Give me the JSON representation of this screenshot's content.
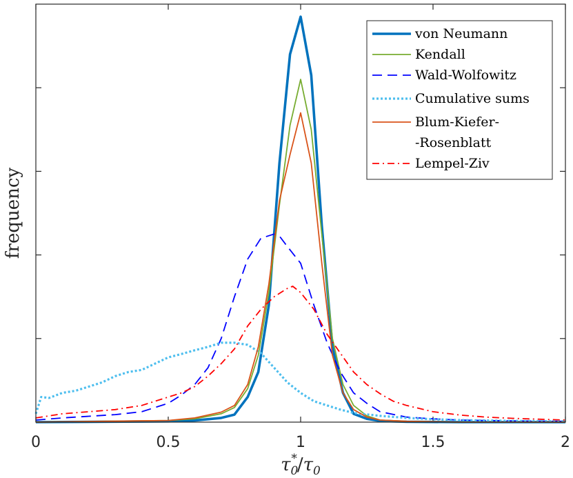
{
  "chart_data": {
    "type": "line",
    "xlabel": "τ0*/τ0",
    "ylabel": "frequency",
    "xlim": [
      0,
      2
    ],
    "ylim": [
      0,
      1
    ],
    "xticks": [
      0,
      0.5,
      1,
      1.5,
      2
    ],
    "xtick_labels": [
      "0",
      "0.5",
      "1",
      "1.5",
      "2"
    ],
    "yticks": [
      0.2,
      0.4,
      0.6,
      0.8
    ],
    "legend_position": "top-right",
    "series": [
      {
        "name": "von Neumann",
        "color": "#0072BD",
        "style": "solid-thick",
        "x": [
          0,
          0.5,
          0.6,
          0.7,
          0.75,
          0.8,
          0.84,
          0.88,
          0.92,
          0.96,
          1.0,
          1.04,
          1.08,
          1.12,
          1.16,
          1.2,
          1.25,
          1.3,
          1.4,
          1.6,
          2.0
        ],
        "y": [
          0.0,
          0.002,
          0.004,
          0.01,
          0.018,
          0.06,
          0.12,
          0.28,
          0.62,
          0.88,
          0.97,
          0.83,
          0.47,
          0.18,
          0.07,
          0.02,
          0.008,
          0.003,
          0.001,
          0.0,
          0.0
        ]
      },
      {
        "name": "Kendall",
        "color": "#77AC30",
        "style": "solid",
        "x": [
          0,
          0.5,
          0.6,
          0.7,
          0.75,
          0.8,
          0.84,
          0.88,
          0.92,
          0.96,
          1.0,
          1.04,
          1.08,
          1.12,
          1.16,
          1.2,
          1.25,
          1.3,
          1.4,
          1.6,
          2.0
        ],
        "y": [
          0.0,
          0.004,
          0.008,
          0.02,
          0.035,
          0.08,
          0.16,
          0.31,
          0.52,
          0.71,
          0.82,
          0.7,
          0.45,
          0.2,
          0.09,
          0.04,
          0.015,
          0.005,
          0.002,
          0.0,
          0.0
        ]
      },
      {
        "name": "Wald-Wolfowitz",
        "color": "#0000FF",
        "style": "dashed",
        "x": [
          0,
          0.1,
          0.2,
          0.3,
          0.4,
          0.5,
          0.55,
          0.6,
          0.65,
          0.7,
          0.75,
          0.8,
          0.85,
          0.9,
          0.92,
          0.95,
          1.0,
          1.05,
          1.1,
          1.15,
          1.2,
          1.25,
          1.3,
          1.4,
          1.5,
          1.6,
          1.8,
          2.0
        ],
        "y": [
          0.005,
          0.01,
          0.014,
          0.018,
          0.025,
          0.045,
          0.065,
          0.09,
          0.13,
          0.2,
          0.3,
          0.39,
          0.44,
          0.45,
          0.445,
          0.42,
          0.38,
          0.28,
          0.19,
          0.12,
          0.07,
          0.045,
          0.025,
          0.012,
          0.008,
          0.005,
          0.003,
          0.002
        ]
      },
      {
        "name": "Cumulative sums",
        "color": "#4DBEEE",
        "style": "dotted",
        "x": [
          0,
          0.02,
          0.05,
          0.1,
          0.15,
          0.2,
          0.25,
          0.3,
          0.35,
          0.4,
          0.45,
          0.5,
          0.55,
          0.6,
          0.65,
          0.7,
          0.72,
          0.75,
          0.8,
          0.85,
          0.9,
          0.95,
          1.0,
          1.05,
          1.1,
          1.15,
          1.2,
          1.3,
          1.4,
          1.5,
          1.6,
          1.8,
          2.0
        ],
        "y": [
          0.02,
          0.06,
          0.058,
          0.07,
          0.075,
          0.085,
          0.095,
          0.11,
          0.12,
          0.125,
          0.14,
          0.155,
          0.163,
          0.172,
          0.18,
          0.19,
          0.19,
          0.19,
          0.185,
          0.165,
          0.13,
          0.095,
          0.07,
          0.05,
          0.04,
          0.03,
          0.022,
          0.015,
          0.01,
          0.007,
          0.005,
          0.003,
          0.002
        ]
      },
      {
        "name": "Blum-Kiefer-\n-Rosenblatt",
        "color": "#D95319",
        "style": "solid",
        "x": [
          0,
          0.5,
          0.6,
          0.7,
          0.75,
          0.8,
          0.84,
          0.88,
          0.92,
          0.96,
          1.0,
          1.04,
          1.08,
          1.12,
          1.16,
          1.2,
          1.25,
          1.3,
          1.4,
          1.6,
          2.0
        ],
        "y": [
          0.0,
          0.004,
          0.01,
          0.024,
          0.04,
          0.09,
          0.18,
          0.33,
          0.53,
          0.64,
          0.74,
          0.62,
          0.38,
          0.16,
          0.07,
          0.03,
          0.012,
          0.005,
          0.002,
          0.0,
          0.0
        ]
      },
      {
        "name": "Lempel-Ziv",
        "color": "#FF0000",
        "style": "dash-dot",
        "x": [
          0,
          0.1,
          0.2,
          0.3,
          0.4,
          0.5,
          0.55,
          0.6,
          0.65,
          0.7,
          0.75,
          0.8,
          0.85,
          0.9,
          0.95,
          0.97,
          1.0,
          1.05,
          1.1,
          1.15,
          1.2,
          1.25,
          1.3,
          1.35,
          1.4,
          1.5,
          1.6,
          1.7,
          1.8,
          2.0
        ],
        "y": [
          0.01,
          0.02,
          0.025,
          0.03,
          0.04,
          0.06,
          0.07,
          0.085,
          0.11,
          0.14,
          0.175,
          0.23,
          0.27,
          0.3,
          0.32,
          0.325,
          0.31,
          0.27,
          0.21,
          0.165,
          0.12,
          0.09,
          0.068,
          0.05,
          0.04,
          0.025,
          0.017,
          0.012,
          0.009,
          0.005
        ]
      }
    ]
  }
}
